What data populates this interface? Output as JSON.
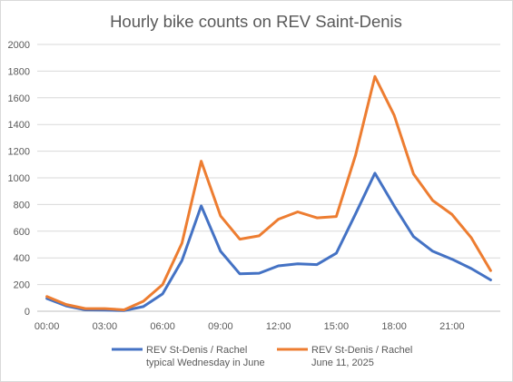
{
  "chart_data": {
    "type": "line",
    "title": "Hourly bike counts on REV Saint-Denis",
    "xlabel": "",
    "ylabel": "",
    "ylim": [
      0,
      2000
    ],
    "yticks": [
      "0",
      "200",
      "400",
      "600",
      "800",
      "1000",
      "1200",
      "1400",
      "1600",
      "1800",
      "2000"
    ],
    "x": [
      0,
      1,
      2,
      3,
      4,
      5,
      6,
      7,
      8,
      9,
      10,
      11,
      12,
      13,
      14,
      15,
      16,
      17,
      18,
      19,
      20,
      21,
      22,
      23
    ],
    "xticks": [
      {
        "at": 0,
        "label": "00:00"
      },
      {
        "at": 3,
        "label": "03:00"
      },
      {
        "at": 6,
        "label": "06:00"
      },
      {
        "at": 9,
        "label": "09:00"
      },
      {
        "at": 12,
        "label": "12:00"
      },
      {
        "at": 15,
        "label": "15:00"
      },
      {
        "at": 18,
        "label": "18:00"
      },
      {
        "at": 21,
        "label": "21:00"
      }
    ],
    "grid": true,
    "legend_position": "bottom",
    "series": [
      {
        "name": "REV St-Denis / Rachel typical Wednesday in June",
        "legend_lines": [
          "REV St-Denis / Rachel",
          "typical Wednesday in June"
        ],
        "color": "#4472c4",
        "values": [
          95,
          40,
          10,
          8,
          5,
          35,
          130,
          380,
          790,
          450,
          280,
          285,
          340,
          355,
          350,
          435,
          730,
          1035,
          790,
          560,
          450,
          390,
          320,
          235
        ]
      },
      {
        "name": "REV St-Denis / Rachel June 11, 2025",
        "legend_lines": [
          "REV St-Denis / Rachel",
          "June 11, 2025"
        ],
        "color": "#ed7d31",
        "values": [
          110,
          50,
          20,
          20,
          10,
          75,
          200,
          510,
          1125,
          715,
          540,
          565,
          690,
          745,
          700,
          710,
          1170,
          1760,
          1470,
          1030,
          830,
          725,
          550,
          305
        ]
      }
    ]
  }
}
